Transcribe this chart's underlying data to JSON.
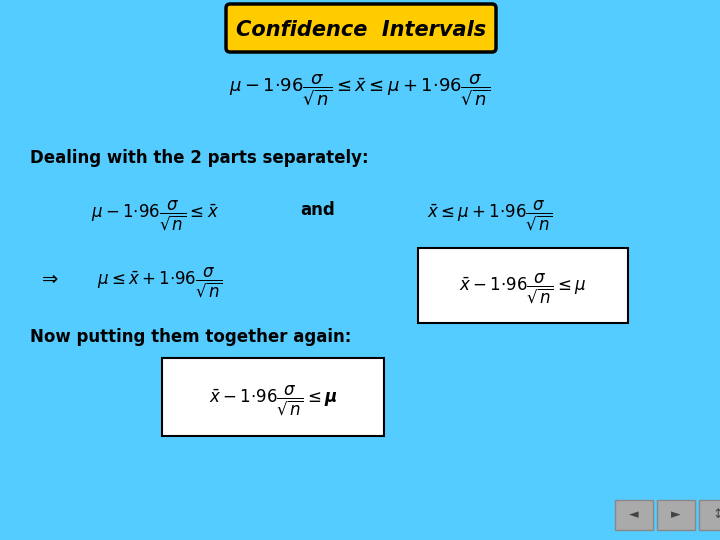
{
  "background_color": "#55CCFF",
  "title_text": "Confidence  Intervals",
  "title_box_color": "#FFCC00",
  "title_box_edge_color": "#000000",
  "title_font_color": "#000000",
  "main_eq": "$\\mu-1{\\cdot}96\\dfrac{\\sigma}{\\sqrt{n}} \\leq \\bar{x} \\leq \\mu+1{\\cdot}96\\dfrac{\\sigma}{\\sqrt{n}}$",
  "text_dealing": "Dealing with the 2 parts separately:",
  "text_now": "Now putting them together again:",
  "eq_left_part": "$\\mu-1{\\cdot}96\\dfrac{\\sigma}{\\sqrt{n}} \\leq \\bar{x}$",
  "eq_and": "and",
  "eq_right_part": "$\\bar{x} \\leq \\mu+1{\\cdot}96\\dfrac{\\sigma}{\\sqrt{n}}$",
  "eq_implies": "$\\Rightarrow$",
  "eq_implies_result": "$\\mu \\leq \\bar{x}+1{\\cdot}96\\dfrac{\\sigma}{\\sqrt{n}}$",
  "eq_box_right": "$\\bar{x}-1{\\cdot}96\\dfrac{\\sigma}{\\sqrt{n}} \\leq \\mu$",
  "eq_box_bottom": "$\\bar{x}-1{\\cdot}96\\dfrac{\\sigma}{\\sqrt{n}} \\leq \\boldsymbol{\\mu}$",
  "text_color": "#000000"
}
